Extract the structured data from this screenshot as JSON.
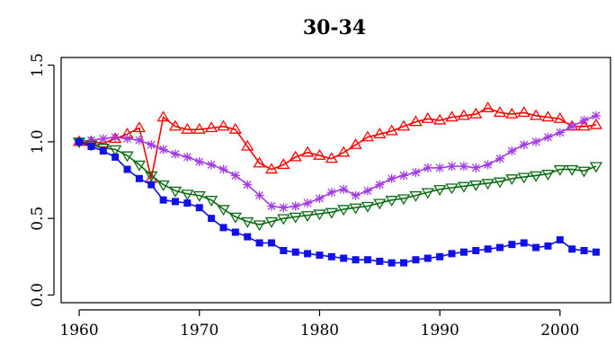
{
  "chart_data": {
    "type": "line",
    "title": "30-34",
    "xlabel": "",
    "ylabel": "",
    "xlim": [
      1958.5,
      2004.2
    ],
    "ylim": [
      -0.05,
      1.55
    ],
    "xticks": [
      1960,
      1970,
      1980,
      1990,
      2000
    ],
    "yticks": [
      0.0,
      0.5,
      1.0,
      1.5
    ],
    "ytick_labels": [
      "0.0",
      "0.5",
      "1.0",
      "1.5"
    ],
    "grid": false,
    "colors": {
      "red": "#ff0000",
      "purple": "#a23be6",
      "green": "#0a6b12",
      "blue": "#1010e8"
    },
    "x": [
      1960,
      1961,
      1962,
      1963,
      1964,
      1965,
      1966,
      1967,
      1968,
      1969,
      1970,
      1971,
      1972,
      1973,
      1974,
      1975,
      1976,
      1977,
      1978,
      1979,
      1980,
      1981,
      1982,
      1983,
      1984,
      1985,
      1986,
      1987,
      1988,
      1989,
      1990,
      1991,
      1992,
      1993,
      1994,
      1995,
      1996,
      1997,
      1998,
      1999,
      2000,
      2001,
      2002,
      2003
    ],
    "series": [
      {
        "color_key": "red",
        "marker": "triangle-up-open",
        "values": [
          1.0,
          1.0,
          0.99,
          1.02,
          1.05,
          1.09,
          0.76,
          1.16,
          1.1,
          1.08,
          1.08,
          1.09,
          1.1,
          1.08,
          0.97,
          0.86,
          0.82,
          0.85,
          0.9,
          0.93,
          0.91,
          0.89,
          0.93,
          0.98,
          1.03,
          1.05,
          1.07,
          1.1,
          1.13,
          1.15,
          1.14,
          1.16,
          1.17,
          1.18,
          1.22,
          1.19,
          1.18,
          1.19,
          1.17,
          1.16,
          1.15,
          1.1,
          1.1,
          1.11
        ]
      },
      {
        "color_key": "purple",
        "marker": "asterisk",
        "values": [
          1.0,
          1.01,
          1.02,
          1.03,
          1.02,
          1.01,
          0.98,
          0.95,
          0.92,
          0.9,
          0.87,
          0.85,
          0.82,
          0.78,
          0.72,
          0.65,
          0.58,
          0.57,
          0.58,
          0.6,
          0.63,
          0.67,
          0.69,
          0.65,
          0.68,
          0.72,
          0.76,
          0.78,
          0.8,
          0.83,
          0.83,
          0.84,
          0.84,
          0.83,
          0.85,
          0.89,
          0.94,
          0.98,
          1.0,
          1.03,
          1.06,
          1.1,
          1.14,
          1.17
        ]
      },
      {
        "color_key": "green",
        "marker": "triangle-down-open",
        "values": [
          1.0,
          0.98,
          0.96,
          0.95,
          0.91,
          0.85,
          0.78,
          0.72,
          0.68,
          0.66,
          0.65,
          0.62,
          0.56,
          0.51,
          0.48,
          0.46,
          0.48,
          0.5,
          0.51,
          0.52,
          0.53,
          0.54,
          0.56,
          0.57,
          0.58,
          0.6,
          0.62,
          0.63,
          0.65,
          0.67,
          0.69,
          0.7,
          0.71,
          0.72,
          0.73,
          0.74,
          0.76,
          0.77,
          0.78,
          0.79,
          0.82,
          0.82,
          0.81,
          0.84
        ]
      },
      {
        "color_key": "blue",
        "marker": "square-filled",
        "values": [
          1.0,
          0.97,
          0.94,
          0.9,
          0.82,
          0.76,
          0.72,
          0.62,
          0.61,
          0.6,
          0.57,
          0.5,
          0.44,
          0.41,
          0.38,
          0.34,
          0.34,
          0.29,
          0.28,
          0.27,
          0.26,
          0.25,
          0.24,
          0.23,
          0.23,
          0.22,
          0.21,
          0.21,
          0.23,
          0.24,
          0.25,
          0.27,
          0.28,
          0.29,
          0.3,
          0.31,
          0.33,
          0.34,
          0.31,
          0.32,
          0.36,
          0.3,
          0.29,
          0.28
        ]
      }
    ]
  }
}
